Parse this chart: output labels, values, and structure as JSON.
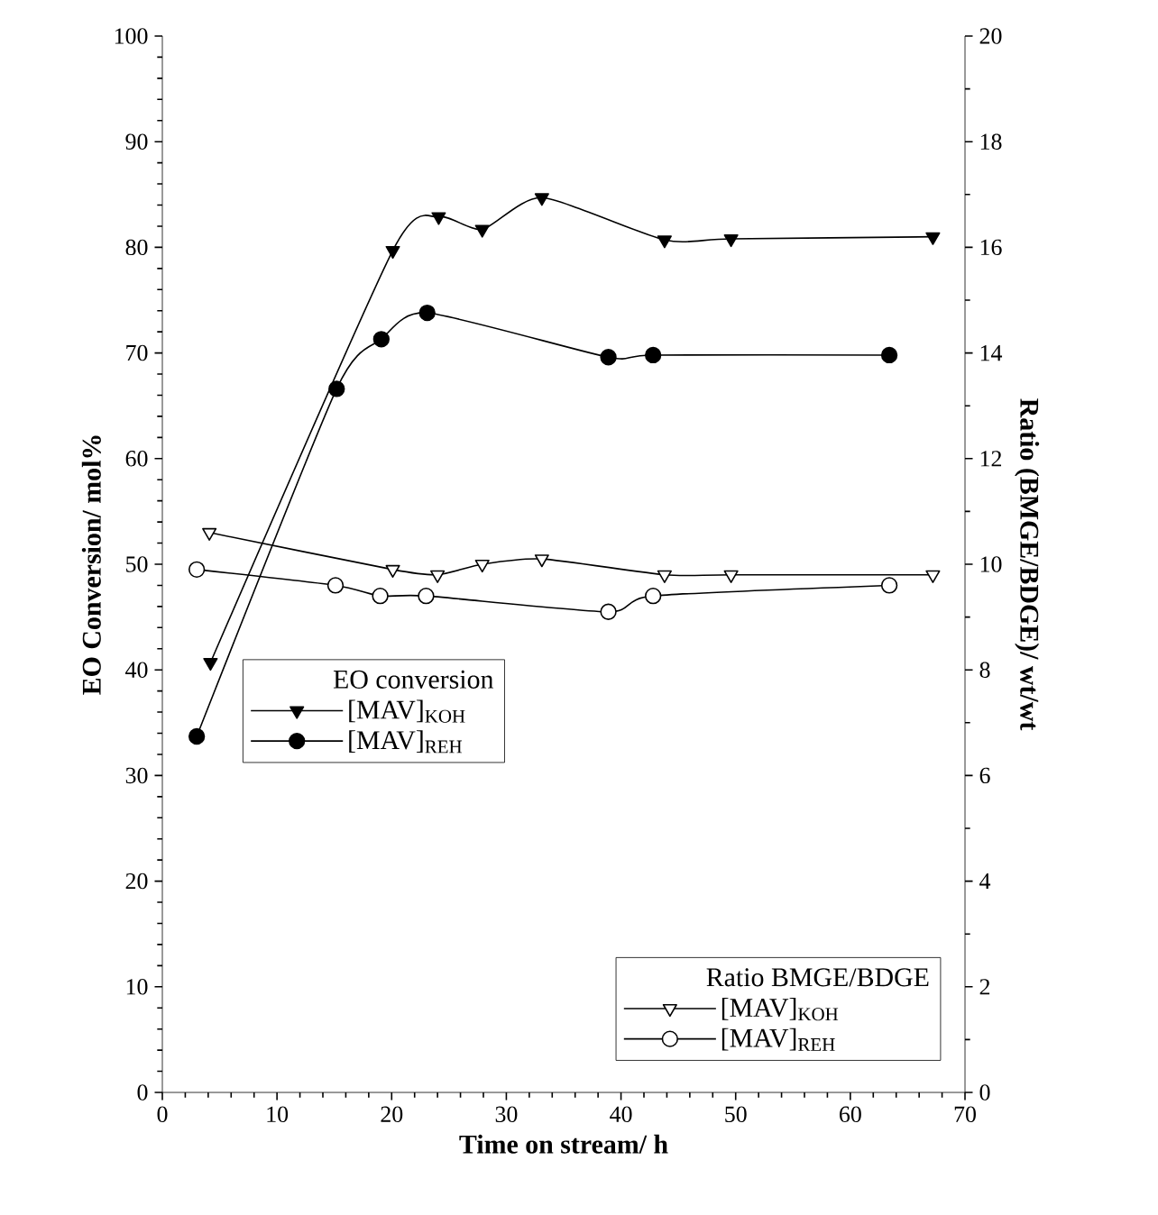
{
  "chart_data": {
    "type": "line",
    "xlabel": "Time on stream/ h",
    "ylabel": "EO Conversion/ mol%",
    "y2label": "Ratio (BMGE/BDGE)/  wt/wt",
    "xlim": [
      0,
      70
    ],
    "xticks": [
      0,
      10,
      20,
      30,
      40,
      50,
      60,
      70
    ],
    "ylim": [
      0,
      100
    ],
    "yticks": [
      0,
      10,
      20,
      30,
      40,
      50,
      60,
      70,
      80,
      90,
      100
    ],
    "y2lim": [
      0,
      20
    ],
    "y2ticks": [
      0,
      2,
      4,
      6,
      8,
      10,
      12,
      14,
      16,
      18,
      20
    ],
    "legend": "left",
    "grid": false,
    "annotations": [
      "EO conversion",
      "Ratio BMGE/BDGE"
    ],
    "series": [
      {
        "name": "[MAV]$_{KOH}$",
        "color": "#000000",
        "marker": "triangle",
        "x": [
          4.2,
          20.1,
          24.1,
          27.9,
          33.1,
          43.8,
          49.6,
          67.2
        ],
        "values": [
          40.7,
          79.7,
          82.9,
          81.7,
          84.7,
          80.7,
          80.8,
          81.0
        ]
      },
      {
        "name": "[MAV]$_{REH}$",
        "color": "#000000",
        "marker": "circle",
        "x": [
          3.0,
          15.2,
          19.1,
          23.1,
          38.9,
          42.8,
          63.4
        ],
        "values": [
          33.7,
          66.6,
          71.3,
          73.8,
          69.6,
          69.8,
          69.8
        ]
      },
      {
        "name": "[MAV]$_{KOH}$",
        "color": "#000000",
        "marker": "triangle",
        "axis": "y2",
        "x": [
          4.1,
          20.1,
          24.0,
          27.9,
          33.1,
          43.8,
          49.6,
          67.2
        ],
        "values": [
          10.6,
          9.9,
          9.8,
          10.0,
          10.1,
          9.8,
          9.8,
          9.8
        ]
      },
      {
        "name": "[MAV]$_{REH}$",
        "color": "#000000",
        "marker": "circle",
        "axis": "y2",
        "x": [
          3.0,
          15.1,
          19.0,
          23.0,
          38.9,
          42.8,
          63.4
        ],
        "values": [
          9.9,
          9.6,
          9.4,
          9.4,
          9.1,
          9.4,
          9.6
        ]
      }
    ]
  }
}
